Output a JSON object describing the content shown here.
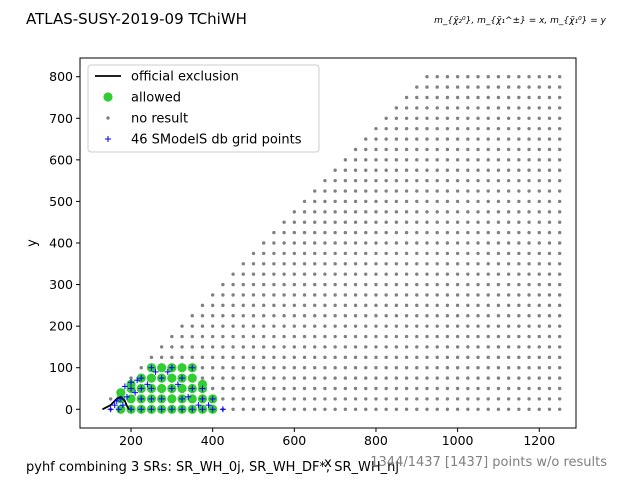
{
  "chart_data": {
    "type": "scatter",
    "title": "ATLAS-SUSY-2019-09 TChiWH",
    "formula": "m_{χ̃₂⁰}, m_{χ̃₁^±} = x, m_{χ̃₁⁰} = y",
    "xlabel": "x",
    "ylabel": "y",
    "xlim": [
      75,
      1290
    ],
    "ylim": [
      -45,
      845
    ],
    "xticks": [
      200,
      400,
      600,
      800,
      1000,
      1200
    ],
    "yticks": [
      0,
      100,
      200,
      300,
      400,
      500,
      600,
      700,
      800
    ],
    "grid": false,
    "legend_position": "upper-left",
    "legend": [
      {
        "label": "official exclusion",
        "marker": "line",
        "color": "#000000"
      },
      {
        "label": "allowed",
        "marker": "circle",
        "color": "#32cd32"
      },
      {
        "label": "no result",
        "marker": "small-dot",
        "color": "#808080"
      },
      {
        "label": "46 SModelS db grid points",
        "marker": "plus",
        "color": "#0000ff"
      }
    ],
    "no_result_grid": {
      "x_start": 150,
      "x_end": 1250,
      "x_step": 25,
      "y_step": 25,
      "region": "y <= x - 125",
      "y_max": 800
    },
    "allowed_points": [
      [
        175,
        0
      ],
      [
        175,
        25
      ],
      [
        175,
        40
      ],
      [
        200,
        0
      ],
      [
        200,
        25
      ],
      [
        200,
        50
      ],
      [
        200,
        60
      ],
      [
        225,
        0
      ],
      [
        225,
        25
      ],
      [
        225,
        50
      ],
      [
        225,
        75
      ],
      [
        250,
        0
      ],
      [
        250,
        25
      ],
      [
        250,
        50
      ],
      [
        250,
        75
      ],
      [
        250,
        100
      ],
      [
        275,
        0
      ],
      [
        275,
        25
      ],
      [
        275,
        50
      ],
      [
        275,
        75
      ],
      [
        275,
        100
      ],
      [
        300,
        0
      ],
      [
        300,
        25
      ],
      [
        300,
        50
      ],
      [
        300,
        75
      ],
      [
        300,
        100
      ],
      [
        325,
        0
      ],
      [
        325,
        25
      ],
      [
        325,
        50
      ],
      [
        325,
        75
      ],
      [
        325,
        100
      ],
      [
        350,
        0
      ],
      [
        350,
        25
      ],
      [
        350,
        50
      ],
      [
        350,
        75
      ],
      [
        350,
        100
      ],
      [
        375,
        0
      ],
      [
        375,
        25
      ],
      [
        375,
        50
      ],
      [
        375,
        60
      ],
      [
        400,
        0
      ],
      [
        400,
        25
      ]
    ],
    "db_grid_points": [
      [
        150,
        0
      ],
      [
        160,
        10
      ],
      [
        165,
        20
      ],
      [
        170,
        0
      ],
      [
        175,
        25
      ],
      [
        180,
        10
      ],
      [
        190,
        30
      ],
      [
        200,
        0
      ],
      [
        200,
        50
      ],
      [
        200,
        65
      ],
      [
        210,
        40
      ],
      [
        225,
        0
      ],
      [
        225,
        25
      ],
      [
        225,
        50
      ],
      [
        225,
        75
      ],
      [
        240,
        60
      ],
      [
        250,
        0
      ],
      [
        250,
        25
      ],
      [
        250,
        50
      ],
      [
        250,
        100
      ],
      [
        275,
        0
      ],
      [
        275,
        25
      ],
      [
        275,
        75
      ],
      [
        300,
        0
      ],
      [
        300,
        50
      ],
      [
        300,
        100
      ],
      [
        325,
        0
      ],
      [
        325,
        25
      ],
      [
        325,
        75
      ],
      [
        350,
        0
      ],
      [
        350,
        50
      ],
      [
        350,
        100
      ],
      [
        375,
        0
      ],
      [
        375,
        25
      ],
      [
        375,
        50
      ],
      [
        400,
        0
      ],
      [
        400,
        25
      ],
      [
        425,
        0
      ],
      [
        185,
        55
      ],
      [
        215,
        70
      ],
      [
        260,
        90
      ],
      [
        290,
        90
      ],
      [
        315,
        60
      ],
      [
        340,
        30
      ],
      [
        365,
        10
      ],
      [
        390,
        10
      ]
    ],
    "official_exclusion": [
      [
        130,
        0
      ],
      [
        150,
        10
      ],
      [
        165,
        25
      ],
      [
        175,
        30
      ],
      [
        185,
        20
      ],
      [
        190,
        8
      ],
      [
        195,
        0
      ]
    ],
    "footer_left": "pyhf combining 3 SRs: SR_WH_0j, SR_WH_DF*, SR_WH_nj",
    "footer_right": "1344/1437 [1437] points w/o results"
  }
}
